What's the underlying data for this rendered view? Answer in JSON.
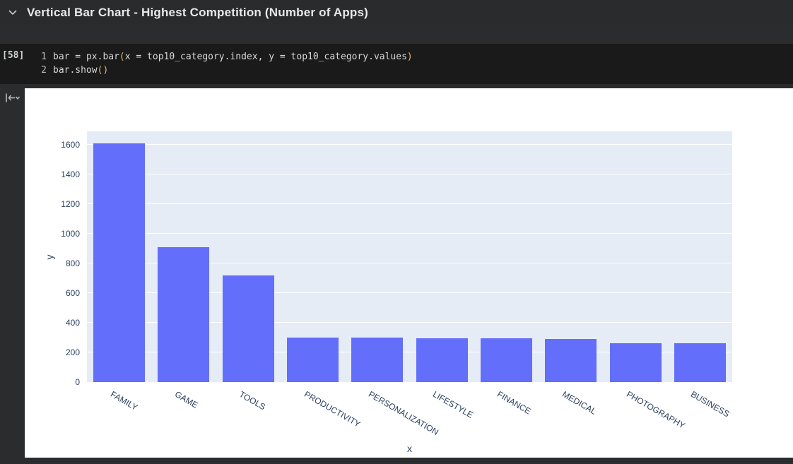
{
  "header": {
    "title": "Vertical Bar Chart - Highest Competition (Number of Apps)"
  },
  "cell": {
    "execution_count": "[58]",
    "code_lines": [
      {
        "number": "1",
        "segments": [
          {
            "text": "bar = px.bar",
            "color": "plain"
          },
          {
            "text": "(",
            "color": "bracket"
          },
          {
            "text": "x = top10_category.index, y = top10_category.values",
            "color": "plain"
          },
          {
            "text": ")",
            "color": "bracket"
          }
        ]
      },
      {
        "number": "2",
        "segments": [
          {
            "text": "bar.show",
            "color": "plain"
          },
          {
            "text": "(",
            "color": "bracket"
          },
          {
            "text": ")",
            "color": "bracket"
          }
        ]
      }
    ]
  },
  "icons": {
    "section_collapse": "chevron-down",
    "output_gutter": "collapse-output"
  },
  "chart_data": {
    "type": "bar",
    "title": "",
    "categories": [
      "FAMILY",
      "GAME",
      "TOOLS",
      "PRODUCTIVITY",
      "PERSONALIZATION",
      "LIFESTYLE",
      "FINANCE",
      "MEDICAL",
      "PHOTOGRAPHY",
      "BUSINESS"
    ],
    "values": [
      1608,
      910,
      719,
      301,
      298,
      297,
      296,
      292,
      263,
      262
    ],
    "xlabel": "x",
    "ylabel": "y",
    "ylim": [
      0,
      1690
    ],
    "ytick_step": 200,
    "yticks": [
      0,
      200,
      400,
      600,
      800,
      1000,
      1200,
      1400,
      1600
    ],
    "grid": true,
    "legend": "none",
    "bar_color": "#636efa",
    "plot_bg": "#e5ecf6",
    "tick_color": "#2a3f5f"
  }
}
